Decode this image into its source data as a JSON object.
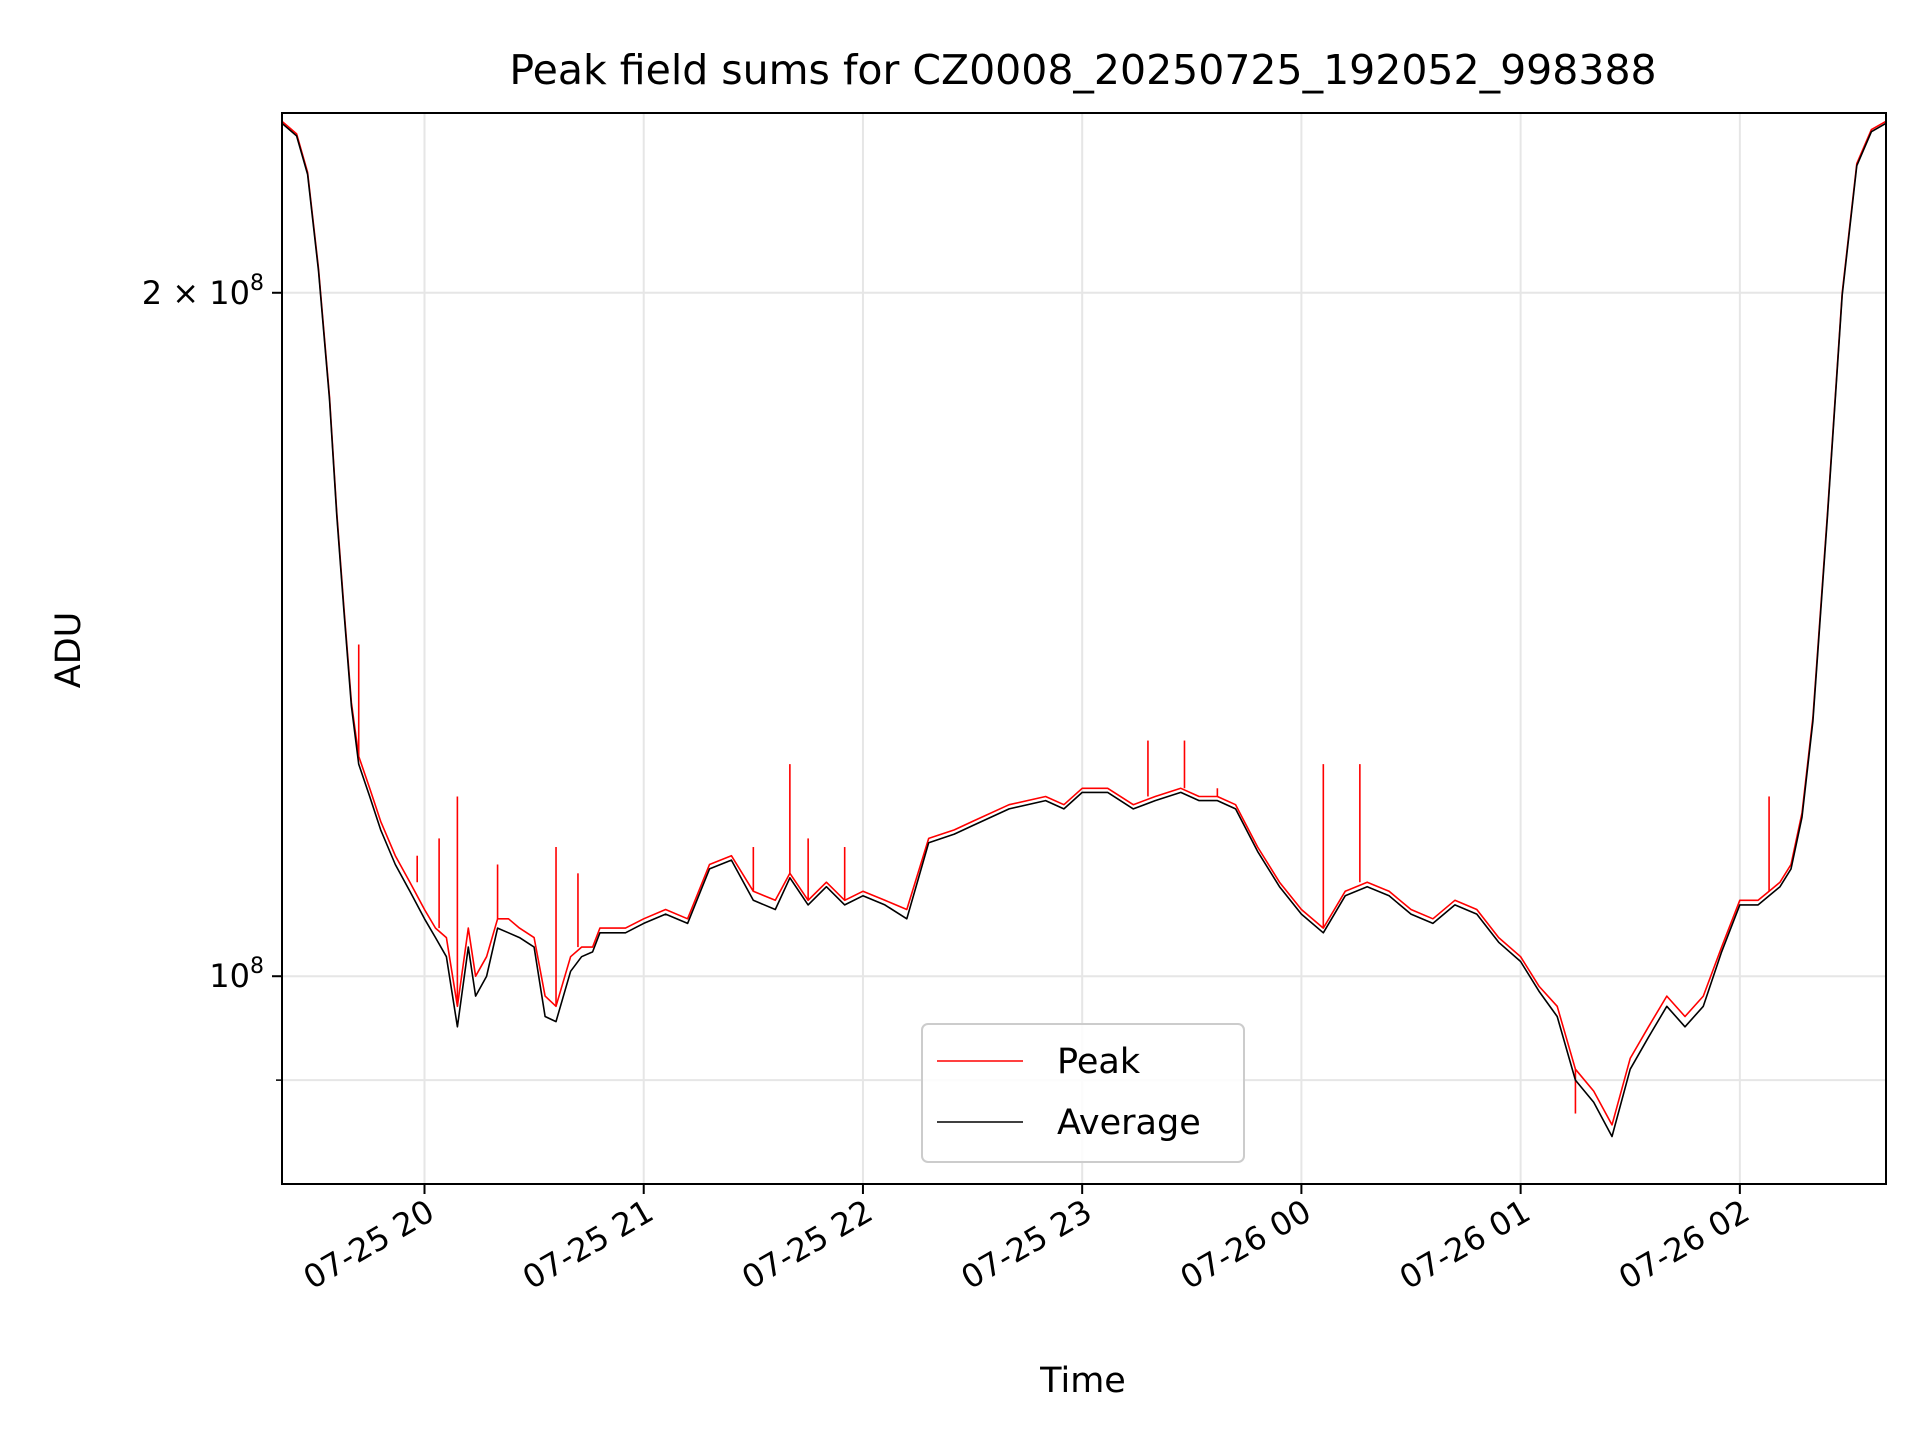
{
  "chart_data": {
    "type": "line",
    "title": "Peak field sums for CZ0008_20250725_192052_998388",
    "xlabel": "Time",
    "ylabel": "ADU",
    "x_scale": "time",
    "y_scale": "log",
    "xlim": [
      "2025-07-25 19:21",
      "2025-07-26 02:40"
    ],
    "ylim": [
      81000000,
      240000000
    ],
    "x_ticks": [
      "07-25 20",
      "07-25 21",
      "07-25 22",
      "07-25 23",
      "07-26 00",
      "07-26 01",
      "07-26 02"
    ],
    "y_ticks": [
      {
        "value": 100000000,
        "label": "10^8"
      },
      {
        "value": 200000000,
        "label": "2×10^8"
      }
    ],
    "grid": true,
    "legend_position": "lower center",
    "series": [
      {
        "name": "Peak",
        "color": "#ff0000",
        "x": [
          "2025-07-25 19:21",
          "2025-07-25 19:25",
          "2025-07-25 19:28",
          "2025-07-25 19:31",
          "2025-07-25 19:34",
          "2025-07-25 19:36",
          "2025-07-25 19:38",
          "2025-07-25 19:40",
          "2025-07-25 19:42",
          "2025-07-25 19:45",
          "2025-07-25 19:48",
          "2025-07-25 19:52",
          "2025-07-25 19:56",
          "2025-07-25 20:00",
          "2025-07-25 20:03",
          "2025-07-25 20:06",
          "2025-07-25 20:09",
          "2025-07-25 20:12",
          "2025-07-25 20:14",
          "2025-07-25 20:17",
          "2025-07-25 20:20",
          "2025-07-25 20:23",
          "2025-07-25 20:26",
          "2025-07-25 20:30",
          "2025-07-25 20:33",
          "2025-07-25 20:36",
          "2025-07-25 20:40",
          "2025-07-25 20:43",
          "2025-07-25 20:46",
          "2025-07-25 20:48",
          "2025-07-25 20:51",
          "2025-07-25 20:55",
          "2025-07-25 21:00",
          "2025-07-25 21:06",
          "2025-07-25 21:12",
          "2025-07-25 21:18",
          "2025-07-25 21:24",
          "2025-07-25 21:30",
          "2025-07-25 21:36",
          "2025-07-25 21:40",
          "2025-07-25 21:45",
          "2025-07-25 21:50",
          "2025-07-25 21:55",
          "2025-07-25 22:00",
          "2025-07-25 22:06",
          "2025-07-25 22:12",
          "2025-07-25 22:18",
          "2025-07-25 22:25",
          "2025-07-25 22:30",
          "2025-07-25 22:40",
          "2025-07-25 22:50",
          "2025-07-25 22:55",
          "2025-07-25 23:00",
          "2025-07-25 23:07",
          "2025-07-25 23:14",
          "2025-07-25 23:20",
          "2025-07-25 23:27",
          "2025-07-25 23:32",
          "2025-07-25 23:37",
          "2025-07-25 23:42",
          "2025-07-25 23:48",
          "2025-07-25 23:54",
          "2025-07-26 00:00",
          "2025-07-26 00:06",
          "2025-07-26 00:12",
          "2025-07-26 00:18",
          "2025-07-26 00:24",
          "2025-07-26 00:30",
          "2025-07-26 00:36",
          "2025-07-26 00:42",
          "2025-07-26 00:48",
          "2025-07-26 00:54",
          "2025-07-26 01:00",
          "2025-07-26 01:05",
          "2025-07-26 01:10",
          "2025-07-26 01:15",
          "2025-07-26 01:20",
          "2025-07-26 01:25",
          "2025-07-26 01:30",
          "2025-07-26 01:35",
          "2025-07-26 01:40",
          "2025-07-26 01:45",
          "2025-07-26 01:50",
          "2025-07-26 01:55",
          "2025-07-26 02:00",
          "2025-07-26 02:05",
          "2025-07-26 02:08",
          "2025-07-26 02:11",
          "2025-07-26 02:14",
          "2025-07-26 02:17",
          "2025-07-26 02:20",
          "2025-07-26 02:24",
          "2025-07-26 02:28",
          "2025-07-26 02:32",
          "2025-07-26 02:36",
          "2025-07-26 02:40"
        ],
        "y": [
          238000000,
          235000000,
          226000000,
          205000000,
          180000000,
          160000000,
          145000000,
          132000000,
          125000000,
          121000000,
          117000000,
          113000000,
          110000000,
          107000000,
          105000000,
          104000000,
          97000000,
          105000000,
          100000000,
          102000000,
          106000000,
          106000000,
          105000000,
          104000000,
          98000000,
          97000000,
          102000000,
          103000000,
          103000000,
          105000000,
          105000000,
          105000000,
          106000000,
          107000000,
          106000000,
          112000000,
          113000000,
          109000000,
          108000000,
          111000000,
          108000000,
          110000000,
          108000000,
          109000000,
          108000000,
          107000000,
          115000000,
          116000000,
          117000000,
          119000000,
          120000000,
          119000000,
          121000000,
          121000000,
          119000000,
          120000000,
          121000000,
          120000000,
          120000000,
          119000000,
          114000000,
          110000000,
          107000000,
          105000000,
          109000000,
          110000000,
          109000000,
          107000000,
          106000000,
          108000000,
          107000000,
          104000000,
          102000000,
          99000000,
          97000000,
          91000000,
          89000000,
          86000000,
          92000000,
          95000000,
          98000000,
          96000000,
          98000000,
          103000000,
          108000000,
          108000000,
          109000000,
          110000000,
          112000000,
          118000000,
          130000000,
          160000000,
          200000000,
          228000000,
          236000000,
          238000000
        ],
        "spikes": [
          {
            "x": "2025-07-25 19:42",
            "y": 140000000
          },
          {
            "x": "2025-07-25 19:58",
            "y": 113000000
          },
          {
            "x": "2025-07-25 20:04",
            "y": 115000000
          },
          {
            "x": "2025-07-25 20:09",
            "y": 120000000
          },
          {
            "x": "2025-07-25 20:20",
            "y": 112000000
          },
          {
            "x": "2025-07-25 20:36",
            "y": 114000000
          },
          {
            "x": "2025-07-25 20:42",
            "y": 111000000
          },
          {
            "x": "2025-07-25 20:56",
            "y": 105000000
          },
          {
            "x": "2025-07-25 21:30",
            "y": 114000000
          },
          {
            "x": "2025-07-25 21:40",
            "y": 124000000
          },
          {
            "x": "2025-07-25 21:45",
            "y": 115000000
          },
          {
            "x": "2025-07-25 21:55",
            "y": 114000000
          },
          {
            "x": "2025-07-25 23:18",
            "y": 127000000
          },
          {
            "x": "2025-07-25 23:28",
            "y": 127000000
          },
          {
            "x": "2025-07-25 23:37",
            "y": 121000000
          },
          {
            "x": "2025-07-26 00:06",
            "y": 124000000
          },
          {
            "x": "2025-07-26 00:16",
            "y": 124000000
          },
          {
            "x": "2025-07-26 01:15",
            "y": 87000000
          },
          {
            "x": "2025-07-26 02:08",
            "y": 120000000
          }
        ]
      },
      {
        "name": "Average",
        "color": "#000000",
        "x": [
          "2025-07-25 19:21",
          "2025-07-25 19:25",
          "2025-07-25 19:28",
          "2025-07-25 19:31",
          "2025-07-25 19:34",
          "2025-07-25 19:36",
          "2025-07-25 19:38",
          "2025-07-25 19:40",
          "2025-07-25 19:42",
          "2025-07-25 19:45",
          "2025-07-25 19:48",
          "2025-07-25 19:52",
          "2025-07-25 19:56",
          "2025-07-25 20:00",
          "2025-07-25 20:03",
          "2025-07-25 20:06",
          "2025-07-25 20:09",
          "2025-07-25 20:12",
          "2025-07-25 20:14",
          "2025-07-25 20:17",
          "2025-07-25 20:20",
          "2025-07-25 20:23",
          "2025-07-25 20:26",
          "2025-07-25 20:30",
          "2025-07-25 20:33",
          "2025-07-25 20:36",
          "2025-07-25 20:40",
          "2025-07-25 20:43",
          "2025-07-25 20:46",
          "2025-07-25 20:48",
          "2025-07-25 20:51",
          "2025-07-25 20:55",
          "2025-07-25 21:00",
          "2025-07-25 21:06",
          "2025-07-25 21:12",
          "2025-07-25 21:18",
          "2025-07-25 21:24",
          "2025-07-25 21:30",
          "2025-07-25 21:36",
          "2025-07-25 21:40",
          "2025-07-25 21:45",
          "2025-07-25 21:50",
          "2025-07-25 21:55",
          "2025-07-25 22:00",
          "2025-07-25 22:06",
          "2025-07-25 22:12",
          "2025-07-25 22:18",
          "2025-07-25 22:25",
          "2025-07-25 22:30",
          "2025-07-25 22:40",
          "2025-07-25 22:50",
          "2025-07-25 22:55",
          "2025-07-25 23:00",
          "2025-07-25 23:07",
          "2025-07-25 23:14",
          "2025-07-25 23:20",
          "2025-07-25 23:27",
          "2025-07-25 23:32",
          "2025-07-25 23:37",
          "2025-07-25 23:42",
          "2025-07-25 23:48",
          "2025-07-25 23:54",
          "2025-07-26 00:00",
          "2025-07-26 00:06",
          "2025-07-26 00:12",
          "2025-07-26 00:18",
          "2025-07-26 00:24",
          "2025-07-26 00:30",
          "2025-07-26 00:36",
          "2025-07-26 00:42",
          "2025-07-26 00:48",
          "2025-07-26 00:54",
          "2025-07-26 01:00",
          "2025-07-26 01:05",
          "2025-07-26 01:10",
          "2025-07-26 01:15",
          "2025-07-26 01:20",
          "2025-07-26 01:25",
          "2025-07-26 01:30",
          "2025-07-26 01:35",
          "2025-07-26 01:40",
          "2025-07-26 01:45",
          "2025-07-26 01:50",
          "2025-07-26 01:55",
          "2025-07-26 02:00",
          "2025-07-26 02:05",
          "2025-07-26 02:08",
          "2025-07-26 02:11",
          "2025-07-26 02:14",
          "2025-07-26 02:17",
          "2025-07-26 02:20",
          "2025-07-26 02:24",
          "2025-07-26 02:28",
          "2025-07-26 02:32",
          "2025-07-26 02:36",
          "2025-07-26 02:40"
        ],
        "y": [
          237500000,
          234500000,
          225500000,
          204500000,
          179500000,
          159500000,
          144500000,
          131500000,
          124000000,
          120000000,
          116000000,
          112000000,
          109000000,
          106000000,
          104000000,
          102000000,
          95000000,
          103000000,
          98000000,
          100000000,
          105000000,
          104500000,
          104000000,
          103000000,
          96000000,
          95500000,
          100500000,
          102000000,
          102500000,
          104500000,
          104500000,
          104500000,
          105500000,
          106500000,
          105500000,
          111500000,
          112500000,
          108000000,
          107000000,
          110500000,
          107500000,
          109500000,
          107500000,
          108500000,
          107500000,
          106000000,
          114500000,
          115500000,
          116500000,
          118500000,
          119500000,
          118500000,
          120500000,
          120500000,
          118500000,
          119500000,
          120500000,
          119500000,
          119500000,
          118500000,
          113500000,
          109500000,
          106500000,
          104500000,
          108500000,
          109500000,
          108500000,
          106500000,
          105500000,
          107500000,
          106500000,
          103500000,
          101500000,
          98500000,
          96000000,
          90000000,
          88000000,
          85000000,
          91000000,
          94000000,
          97000000,
          95000000,
          97000000,
          102500000,
          107500000,
          107500000,
          108500000,
          109500000,
          111500000,
          117500000,
          129500000,
          159500000,
          199500000,
          227500000,
          235500000,
          237500000
        ]
      }
    ]
  }
}
